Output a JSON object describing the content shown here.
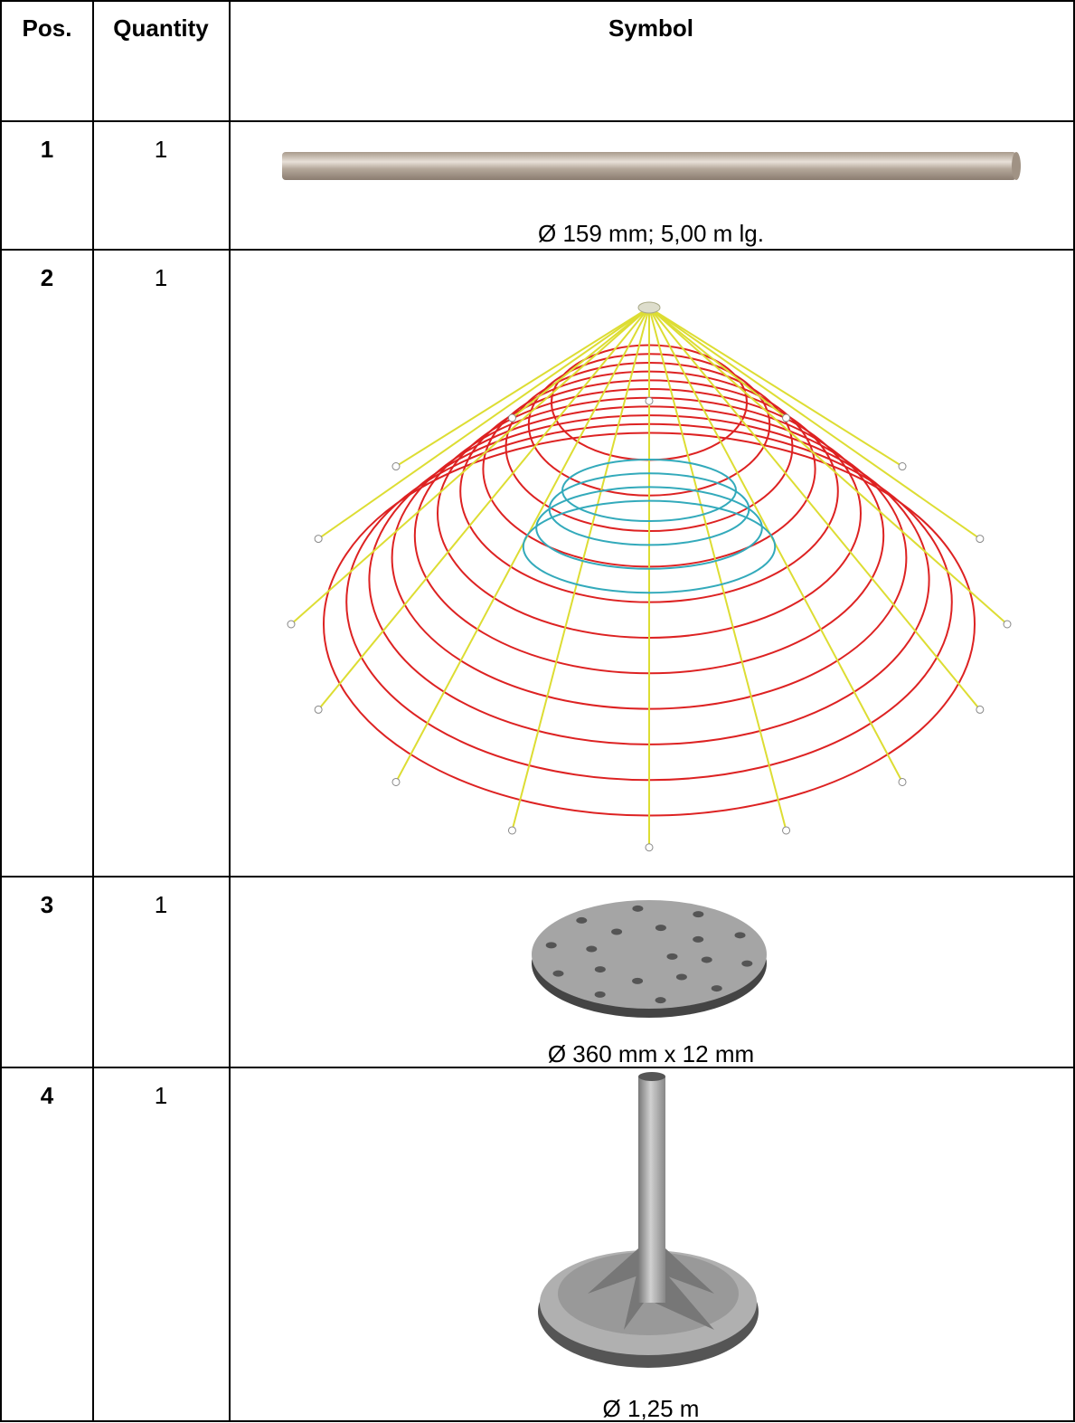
{
  "table": {
    "header": [
      "Pos.",
      "Quantity",
      "Symbol"
    ],
    "rows": [
      {
        "pos": "1",
        "quantity": "1",
        "caption": "Ø 159 mm; 5,00 m lg."
      },
      {
        "pos": "2",
        "quantity": "1"
      },
      {
        "pos": "3",
        "quantity": "1",
        "caption": "Ø 360 mm x 12 mm"
      },
      {
        "pos": "4",
        "quantity": "1",
        "caption": "Ø 1,25 m"
      }
    ]
  }
}
